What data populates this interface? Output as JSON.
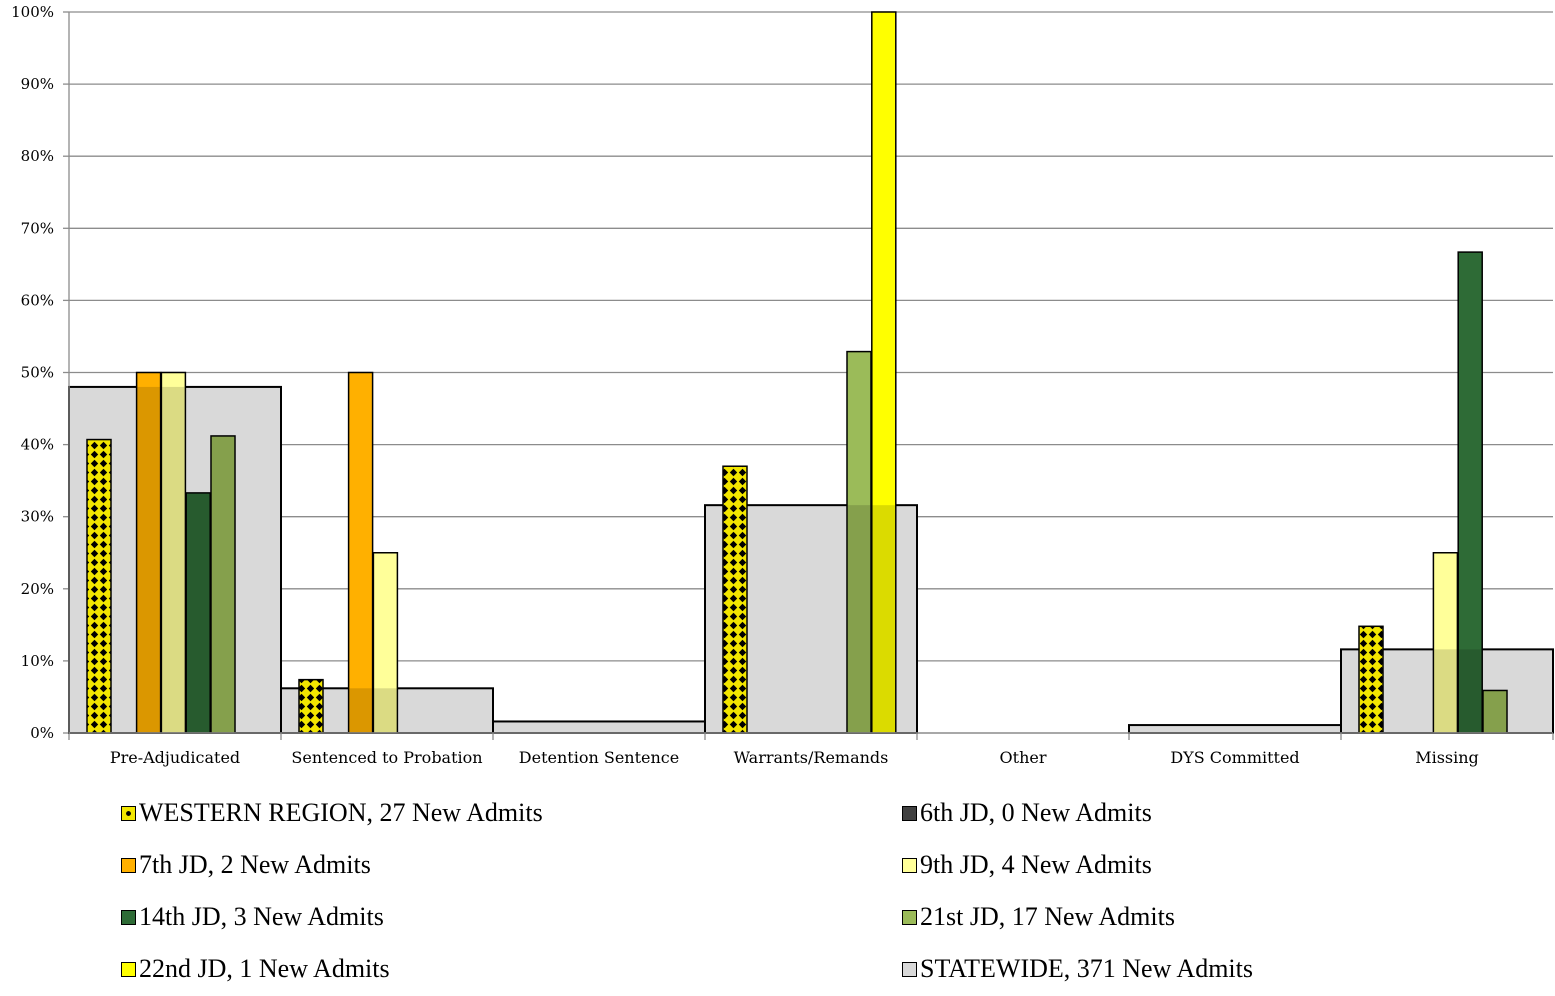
{
  "chart_data": {
    "type": "bar",
    "categories": [
      "Pre-Adjudicated",
      "Sentenced to Probation",
      "Detention Sentence",
      "Warrants/Remands",
      "Other",
      "DYS Committed",
      "Missing"
    ],
    "yticks": [
      "0%",
      "10%",
      "20%",
      "30%",
      "40%",
      "50%",
      "60%",
      "70%",
      "80%",
      "90%",
      "100%"
    ],
    "ylim": [
      0,
      100
    ],
    "grid": true,
    "legend_position": "bottom",
    "background_series": {
      "name": "STATEWIDE, 371 New Admits",
      "color": "#d9d9d9",
      "values": [
        48,
        6.2,
        1.6,
        31.6,
        0,
        1.1,
        11.6
      ]
    },
    "series": [
      {
        "name": "WESTERN REGION, 27 New Admits",
        "color": "#f2e600",
        "pattern": "dots",
        "values": [
          40.7,
          7.4,
          0,
          37.0,
          0,
          0,
          14.8
        ]
      },
      {
        "name": "6th JD, 0 New Admits",
        "color": "#404040",
        "values": [
          0,
          0,
          0,
          0,
          0,
          0,
          0
        ]
      },
      {
        "name": "7th JD, 2 New Admits",
        "color": "#ffb000",
        "values": [
          50,
          50,
          0,
          0,
          0,
          0,
          0
        ]
      },
      {
        "name": "9th JD, 4 New Admits",
        "color": "#ffff99",
        "values": [
          50,
          25,
          0,
          0,
          0,
          0,
          25
        ]
      },
      {
        "name": "14th JD, 3 New Admits",
        "color": "#2e6b36",
        "values": [
          33.3,
          0,
          0,
          0,
          0,
          0,
          66.7
        ]
      },
      {
        "name": "21st JD, 17 New Admits",
        "color": "#9bbb59",
        "values": [
          41.2,
          0,
          0,
          52.9,
          0,
          0,
          5.9
        ]
      },
      {
        "name": "22nd JD, 1 New Admits",
        "color": "#ffff00",
        "values": [
          0,
          0,
          0,
          100,
          0,
          0,
          0
        ]
      }
    ]
  },
  "legend": [
    {
      "label": "WESTERN REGION, 27 New Admits",
      "color": "#f2e600",
      "pattern": "dots"
    },
    {
      "label": "6th JD, 0 New Admits",
      "color": "#404040"
    },
    {
      "label": "7th JD, 2 New Admits",
      "color": "#ffb000"
    },
    {
      "label": "9th JD, 4 New Admits",
      "color": "#ffff99"
    },
    {
      "label": "14th JD, 3 New Admits",
      "color": "#2e6b36"
    },
    {
      "label": "21st JD, 17 New Admits",
      "color": "#9bbb59"
    },
    {
      "label": "22nd JD, 1 New Admits",
      "color": "#ffff00"
    },
    {
      "label": "STATEWIDE, 371 New Admits",
      "color": "#d9d9d9"
    }
  ]
}
